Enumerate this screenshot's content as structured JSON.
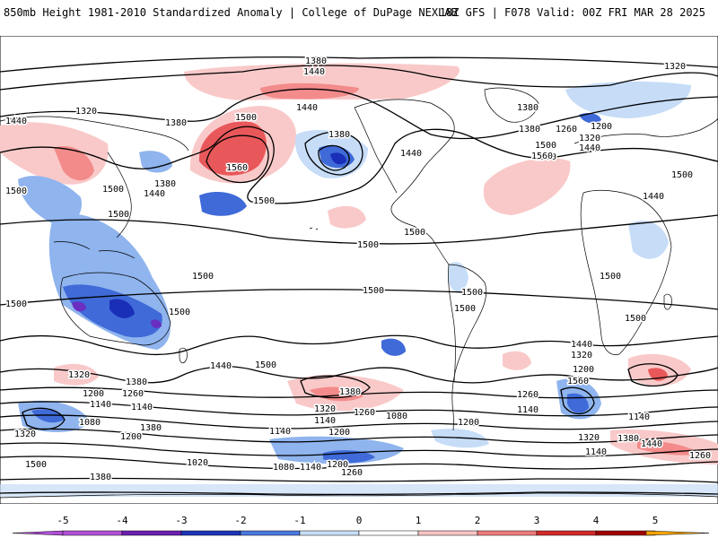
{
  "header": {
    "title_left": "850mb Height 1981-2010 Standardized Anomaly | College of DuPage NEXLAB",
    "title_right": "18Z GFS | F078 Valid: 00Z FRI MAR 28 2025"
  },
  "colors": {
    "anom_pos1": "#f9c9c9",
    "anom_pos2": "#f38b8b",
    "anom_pos3": "#e8585a",
    "anom_neg1": "#c6dcf7",
    "anom_neg2": "#8fb4ee",
    "anom_neg3": "#3f6ad8",
    "anom_neg4": "#1a2fb8",
    "anom_neg5": "#6a2fc0",
    "contour": "#000000",
    "coast": "#000000"
  },
  "colorbar": {
    "ticks": [
      "-5",
      "-4",
      "-3",
      "-2",
      "-1",
      "0",
      "1",
      "2",
      "3",
      "4",
      "5"
    ],
    "bins": [
      {
        "from": -5,
        "to": -4,
        "color": "#b24fd8"
      },
      {
        "from": -4,
        "to": -3,
        "color": "#6a1fb0"
      },
      {
        "from": -3,
        "to": -2,
        "color": "#1c34b8"
      },
      {
        "from": -2,
        "to": -1,
        "color": "#4a78e0"
      },
      {
        "from": -1,
        "to": 0,
        "color": "#c9def8"
      },
      {
        "from": 0,
        "to": 1,
        "color": "#ffffff"
      },
      {
        "from": 1,
        "to": 2,
        "color": "#f8c4c4"
      },
      {
        "from": 2,
        "to": 3,
        "color": "#f07a7a"
      },
      {
        "from": 3,
        "to": 4,
        "color": "#d42a2a"
      },
      {
        "from": 4,
        "to": 5,
        "color": "#a00000"
      },
      {
        "from": 5,
        "to": 6,
        "color": "#f5a300"
      }
    ]
  },
  "contour_labels": [
    {
      "id": "c1",
      "text": "1380"
    },
    {
      "id": "c2",
      "text": "1320"
    },
    {
      "id": "c3",
      "text": "1440"
    },
    {
      "id": "c4",
      "text": "1320"
    },
    {
      "id": "c5",
      "text": "1440"
    },
    {
      "id": "c6",
      "text": "1380"
    },
    {
      "id": "c7",
      "text": "1500"
    },
    {
      "id": "c8",
      "text": "1560"
    },
    {
      "id": "c9",
      "text": "1440"
    },
    {
      "id": "c10",
      "text": "1380"
    },
    {
      "id": "c11",
      "text": "1440"
    },
    {
      "id": "c12",
      "text": "1380"
    },
    {
      "id": "c13",
      "text": "1500"
    },
    {
      "id": "c14",
      "text": "1500"
    },
    {
      "id": "c15",
      "text": "1440"
    },
    {
      "id": "c16",
      "text": "1380"
    },
    {
      "id": "c17",
      "text": "1500"
    },
    {
      "id": "c18",
      "text": "1500"
    },
    {
      "id": "c19",
      "text": "1500"
    },
    {
      "id": "c20",
      "text": "1380"
    },
    {
      "id": "c21",
      "text": "1260"
    },
    {
      "id": "c22",
      "text": "1200"
    },
    {
      "id": "c23",
      "text": "1320"
    },
    {
      "id": "c24",
      "text": "1440"
    },
    {
      "id": "c25",
      "text": "1500"
    },
    {
      "id": "c26",
      "text": "1560"
    },
    {
      "id": "c27",
      "text": "1500"
    },
    {
      "id": "c28",
      "text": "1440"
    },
    {
      "id": "c29",
      "text": "1500"
    },
    {
      "id": "c30",
      "text": "1500"
    },
    {
      "id": "c31",
      "text": "1500"
    },
    {
      "id": "c32",
      "text": "1500"
    },
    {
      "id": "c33",
      "text": "1500"
    },
    {
      "id": "c34",
      "text": "1500"
    },
    {
      "id": "c35",
      "text": "1500"
    },
    {
      "id": "c36",
      "text": "1500"
    },
    {
      "id": "c37",
      "text": "1500"
    },
    {
      "id": "c38",
      "text": "1500"
    },
    {
      "id": "c39",
      "text": "1440"
    },
    {
      "id": "c40",
      "text": "1500"
    },
    {
      "id": "c41",
      "text": "1440"
    },
    {
      "id": "c42",
      "text": "1320"
    },
    {
      "id": "c43",
      "text": "1200"
    },
    {
      "id": "c44",
      "text": "1560"
    },
    {
      "id": "c45",
      "text": "1320"
    },
    {
      "id": "c46",
      "text": "1380"
    },
    {
      "id": "c47",
      "text": "1200"
    },
    {
      "id": "c48",
      "text": "1260"
    },
    {
      "id": "c49",
      "text": "1140"
    },
    {
      "id": "c50",
      "text": "1140"
    },
    {
      "id": "c51",
      "text": "1080"
    },
    {
      "id": "c52",
      "text": "1320"
    },
    {
      "id": "c53",
      "text": "1200"
    },
    {
      "id": "c54",
      "text": "1380"
    },
    {
      "id": "c55",
      "text": "1500"
    },
    {
      "id": "c56",
      "text": "1380"
    },
    {
      "id": "c57",
      "text": "1320"
    },
    {
      "id": "c58",
      "text": "1260"
    },
    {
      "id": "c59",
      "text": "1140"
    },
    {
      "id": "c60",
      "text": "1200"
    },
    {
      "id": "c61",
      "text": "1080"
    },
    {
      "id": "c62",
      "text": "1140"
    },
    {
      "id": "c63",
      "text": "1080"
    },
    {
      "id": "c64",
      "text": "1140"
    },
    {
      "id": "c65",
      "text": "1020"
    },
    {
      "id": "c66",
      "text": "1200"
    },
    {
      "id": "c67",
      "text": "1260"
    },
    {
      "id": "c68",
      "text": "1380"
    },
    {
      "id": "c69",
      "text": "1260"
    },
    {
      "id": "c70",
      "text": "1140"
    },
    {
      "id": "c71",
      "text": "1200"
    },
    {
      "id": "c72",
      "text": "1320"
    },
    {
      "id": "c73",
      "text": "1380"
    },
    {
      "id": "c74",
      "text": "1440"
    },
    {
      "id": "c75",
      "text": "1260"
    },
    {
      "id": "c76",
      "text": "1140"
    },
    {
      "id": "c77",
      "text": "1140"
    }
  ]
}
